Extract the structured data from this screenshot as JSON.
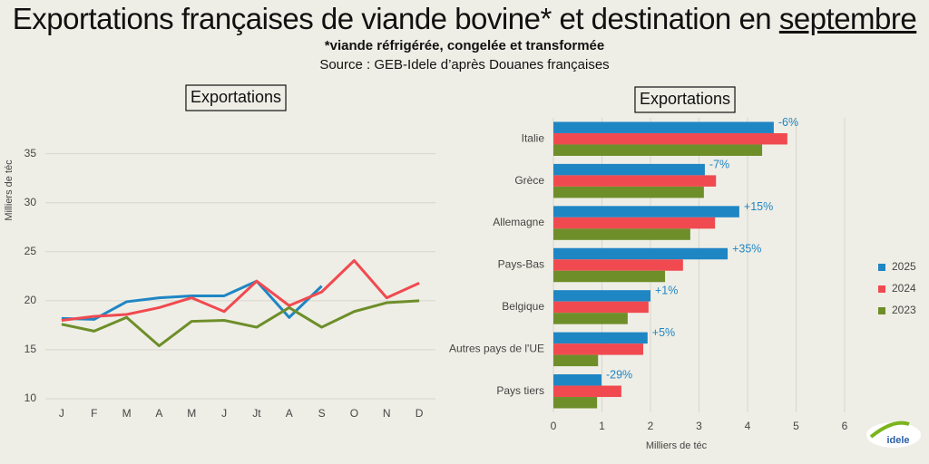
{
  "header": {
    "title": "Exportations françaises de viande bovine* et destination en septembre",
    "note": "*viande réfrigérée, congelée et transformée",
    "source": "Source : GEB-Idele d’après Douanes françaises"
  },
  "logo": "idele",
  "chart_data": [
    {
      "type": "line",
      "title": "Exportations",
      "y_label": "Milliers de téc",
      "categories": [
        "J",
        "F",
        "M",
        "A",
        "M",
        "J",
        "Jt",
        "A",
        "S",
        "O",
        "N",
        "D"
      ],
      "ylim": [
        10,
        37
      ],
      "yticks": [
        10,
        15,
        20,
        25,
        30,
        35
      ],
      "grid": true,
      "series": [
        {
          "name": "2025",
          "color": "#1f86c4",
          "values": [
            18.2,
            18.1,
            19.9,
            20.3,
            20.5,
            20.5,
            22.0,
            18.3,
            21.5,
            null,
            null,
            null
          ]
        },
        {
          "name": "2024",
          "color": "#f04a50",
          "values": [
            18.0,
            18.4,
            18.6,
            19.3,
            20.3,
            18.9,
            22.0,
            19.5,
            20.9,
            24.1,
            20.3,
            21.8
          ]
        },
        {
          "name": "2023",
          "color": "#6e8e2a",
          "values": [
            17.6,
            16.9,
            18.3,
            15.4,
            17.9,
            18.0,
            17.3,
            19.3,
            17.3,
            18.9,
            19.8,
            20.0
          ]
        }
      ]
    },
    {
      "type": "barh",
      "title": "Exportations",
      "x_label": "Milliers de téc",
      "categories": [
        "Italie",
        "Grèce",
        "Allemagne",
        "Pays-Bas",
        "Belgique",
        "Autres pays de l'UE",
        "Pays tiers"
      ],
      "xlim": [
        0,
        6
      ],
      "xticks": [
        0,
        1,
        2,
        3,
        4,
        5,
        6
      ],
      "grid": true,
      "legend": "right",
      "annotations": [
        "-6%",
        "-7%",
        "+15%",
        "+35%",
        "+1%",
        "+5%",
        "-29%"
      ],
      "series": [
        {
          "name": "2025",
          "color": "#1f86c4",
          "values": [
            4.54,
            3.12,
            3.83,
            3.59,
            2.0,
            1.94,
            0.99
          ]
        },
        {
          "name": "2024",
          "color": "#f04a50",
          "values": [
            4.82,
            3.35,
            3.33,
            2.67,
            1.96,
            1.85,
            1.4
          ]
        },
        {
          "name": "2023",
          "color": "#6e8e2a",
          "values": [
            4.3,
            3.1,
            2.82,
            2.3,
            1.53,
            0.92,
            0.9
          ]
        }
      ]
    }
  ]
}
